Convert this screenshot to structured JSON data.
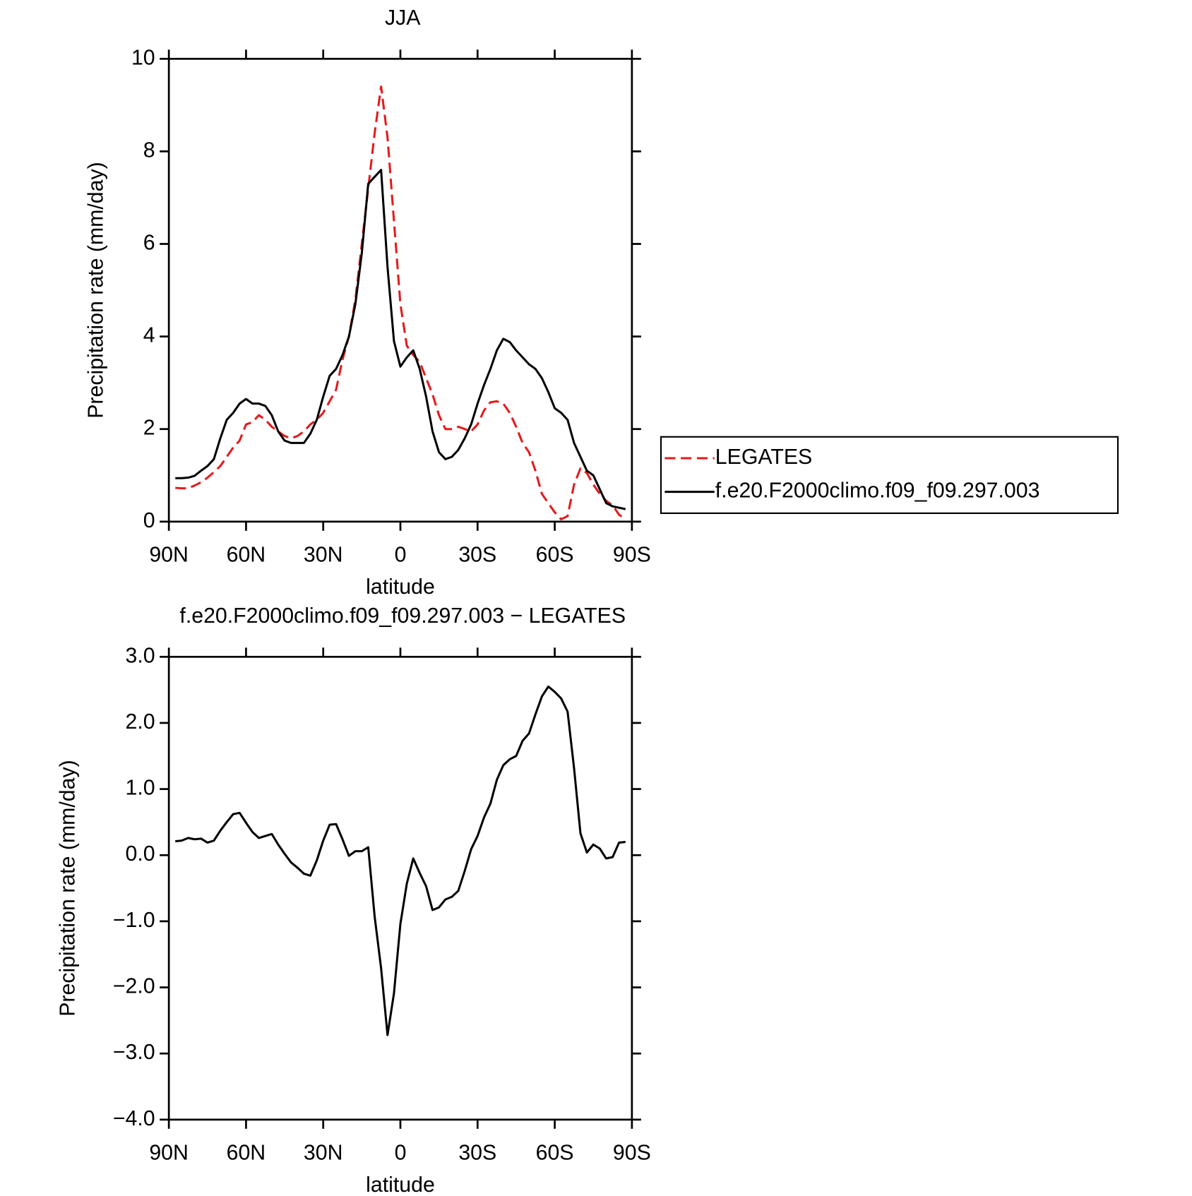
{
  "chart_data": [
    {
      "type": "line",
      "title": "JJA",
      "xlabel": "latitude",
      "ylabel": "Precipitation rate (mm/day)",
      "x": [
        87.5,
        85,
        82.5,
        80,
        77.5,
        75,
        72.5,
        70,
        67.5,
        65,
        62.5,
        60,
        57.5,
        55,
        52.5,
        50,
        47.5,
        45,
        42.5,
        40,
        37.5,
        35,
        32.5,
        30,
        27.5,
        25,
        22.5,
        20,
        17.5,
        15,
        12.5,
        10,
        7.5,
        5,
        2.5,
        0,
        -2.5,
        -5,
        -7.5,
        -10,
        -12.5,
        -15,
        -17.5,
        -20,
        -22.5,
        -25,
        -27.5,
        -30,
        -32.5,
        -35,
        -37.5,
        -40,
        -42.5,
        -45,
        -47.5,
        -50,
        -52.5,
        -55,
        -57.5,
        -60,
        -62.5,
        -65,
        -67.5,
        -70,
        -72.5,
        -75,
        -77.5,
        -80,
        -82.5,
        -85,
        -87.5
      ],
      "series": [
        {
          "name": "LEGATES",
          "color": "#e31a1c",
          "dashed": true,
          "values": [
            0.73,
            0.72,
            0.72,
            0.78,
            0.85,
            0.95,
            1.07,
            1.2,
            1.4,
            1.6,
            1.75,
            2.1,
            2.15,
            2.3,
            2.2,
            2.05,
            1.95,
            1.85,
            1.8,
            1.85,
            1.95,
            2.1,
            2.2,
            2.35,
            2.6,
            2.85,
            3.5,
            4.0,
            4.8,
            6.0,
            7.2,
            8.4,
            9.4,
            8.3,
            6.5,
            4.7,
            3.8,
            3.6,
            3.45,
            3.1,
            2.75,
            2.3,
            2.0,
            2.0,
            2.05,
            2.0,
            1.95,
            2.1,
            2.4,
            2.58,
            2.6,
            2.55,
            2.35,
            2.05,
            1.7,
            1.5,
            1.1,
            0.6,
            0.4,
            0.2,
            0.05,
            0.12,
            0.8,
            1.15,
            1.05,
            0.8,
            0.6,
            0.45,
            0.35,
            0.15,
            0.05
          ]
        },
        {
          "name": "f.e20.F2000climo.f09_f09.297.003",
          "color": "#000000",
          "dashed": false,
          "values": [
            0.94,
            0.94,
            0.95,
            0.99,
            1.1,
            1.2,
            1.35,
            1.8,
            2.2,
            2.35,
            2.55,
            2.65,
            2.55,
            2.55,
            2.5,
            2.3,
            1.95,
            1.75,
            1.7,
            1.7,
            1.7,
            1.9,
            2.2,
            2.7,
            3.15,
            3.3,
            3.6,
            4.0,
            4.7,
            5.8,
            7.3,
            7.45,
            7.6,
            5.5,
            3.9,
            3.35,
            3.55,
            3.7,
            3.3,
            2.7,
            1.95,
            1.5,
            1.35,
            1.4,
            1.55,
            1.8,
            2.1,
            2.55,
            2.95,
            3.3,
            3.7,
            3.95,
            3.88,
            3.7,
            3.55,
            3.4,
            3.3,
            3.1,
            2.8,
            2.45,
            2.35,
            2.2,
            1.7,
            1.4,
            1.1,
            1.0,
            0.7,
            0.4,
            0.33,
            0.3,
            0.27
          ]
        }
      ],
      "xlim": [
        90,
        -90
      ],
      "xticks": [
        {
          "value": 90,
          "label": "90N"
        },
        {
          "value": 60,
          "label": "60N"
        },
        {
          "value": 30,
          "label": "30N"
        },
        0,
        {
          "value": -30,
          "label": "30S"
        },
        {
          "value": -60,
          "label": "60S"
        },
        {
          "value": -90,
          "label": "90S"
        }
      ],
      "ylim": [
        0,
        10
      ],
      "yticks": [
        0,
        2,
        4,
        6,
        8,
        10
      ],
      "legend": "right"
    },
    {
      "type": "line",
      "title": "f.e20.F2000climo.f09_f09.297.003 − LEGATES",
      "xlabel": "latitude",
      "ylabel": "Precipitation rate (mm/day)",
      "x": [
        87.5,
        85,
        82.5,
        80,
        77.5,
        75,
        72.5,
        70,
        67.5,
        65,
        62.5,
        60,
        57.5,
        55,
        52.5,
        50,
        47.5,
        45,
        42.5,
        40,
        37.5,
        35,
        32.5,
        30,
        27.5,
        25,
        22.5,
        20,
        17.5,
        15,
        12.5,
        10,
        7.5,
        5,
        2.5,
        0,
        -2.5,
        -5,
        -7.5,
        -10,
        -12.5,
        -15,
        -17.5,
        -20,
        -22.5,
        -25,
        -27.5,
        -30,
        -32.5,
        -35,
        -37.5,
        -40,
        -42.5,
        -45,
        -47.5,
        -50,
        -52.5,
        -55,
        -57.5,
        -60,
        -62.5,
        -65,
        -67.5,
        -70,
        -72.5,
        -75,
        -77.5,
        -80,
        -82.5,
        -85,
        -87.5
      ],
      "series": [
        {
          "color": "#000000",
          "dashed": false,
          "values": [
            0.21,
            0.22,
            0.26,
            0.24,
            0.25,
            0.19,
            0.22,
            0.37,
            0.5,
            0.62,
            0.64,
            0.49,
            0.35,
            0.26,
            0.29,
            0.32,
            0.16,
            0.02,
            -0.11,
            -0.19,
            -0.28,
            -0.31,
            -0.08,
            0.22,
            0.46,
            0.47,
            0.24,
            -0.01,
            0.06,
            0.06,
            0.12,
            -0.93,
            -1.71,
            -2.72,
            -2.09,
            -1.04,
            -0.43,
            -0.05,
            -0.27,
            -0.47,
            -0.83,
            -0.79,
            -0.67,
            -0.63,
            -0.54,
            -0.24,
            0.09,
            0.29,
            0.57,
            0.78,
            1.14,
            1.36,
            1.45,
            1.5,
            1.73,
            1.84,
            2.13,
            2.4,
            2.55,
            2.47,
            2.37,
            2.17,
            1.32,
            0.33,
            0.04,
            0.16,
            0.1,
            -0.05,
            -0.03,
            0.19,
            0.2
          ]
        }
      ],
      "xlim": [
        90,
        -90
      ],
      "xticks": [
        {
          "value": 90,
          "label": "90N"
        },
        {
          "value": 60,
          "label": "60N"
        },
        {
          "value": 30,
          "label": "30N"
        },
        0,
        {
          "value": -30,
          "label": "30S"
        },
        {
          "value": -60,
          "label": "60S"
        },
        {
          "value": -90,
          "label": "90S"
        }
      ],
      "ylim": [
        -4,
        3
      ],
      "yticks": [
        {
          "value": -4,
          "label": "−4.0"
        },
        {
          "value": -3,
          "label": "−3.0"
        },
        {
          "value": -2,
          "label": "−2.0"
        },
        {
          "value": -1,
          "label": "−1.0"
        },
        {
          "value": 0,
          "label": "0.0"
        },
        {
          "value": 1,
          "label": "1.0"
        },
        {
          "value": 2,
          "label": "2.0"
        },
        {
          "value": 3,
          "label": "3.0"
        }
      ]
    }
  ]
}
